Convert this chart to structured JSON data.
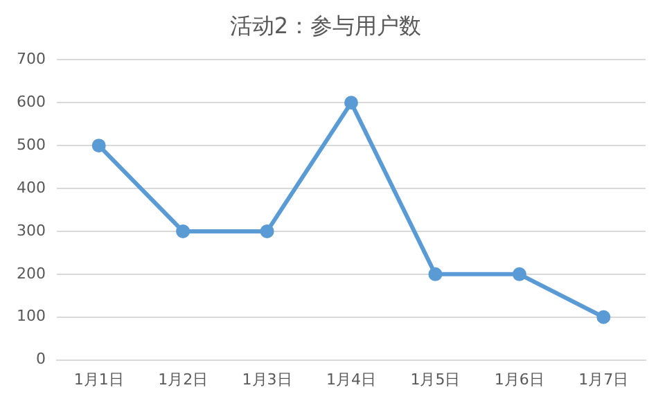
{
  "chart_data": {
    "type": "line",
    "title": "活动2：参与用户数",
    "categories": [
      "1月1日",
      "1月2日",
      "1月3日",
      "1月4日",
      "1月5日",
      "1月6日",
      "1月7日"
    ],
    "series": [
      {
        "color": "#5b9bd5",
        "values": [
          500,
          300,
          300,
          600,
          200,
          200,
          100
        ]
      }
    ],
    "ylim": [
      0,
      700
    ],
    "yticks": [
      0,
      100,
      200,
      300,
      400,
      500,
      600,
      700
    ],
    "grid": "y",
    "legend": false,
    "marker": "circle",
    "line_style": "solid"
  }
}
